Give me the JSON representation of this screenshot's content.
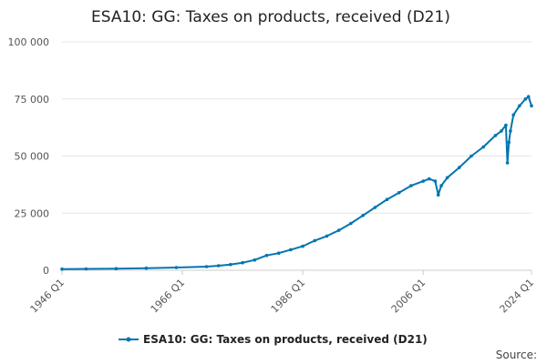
{
  "chart_data": {
    "type": "line",
    "title": "ESA10: GG: Taxes on products, received (D21)",
    "xlabel": "",
    "ylabel": "",
    "x_ticks": [
      "1946 Q1",
      "1966 Q1",
      "1986 Q1",
      "2006 Q1",
      "2024 Q1"
    ],
    "y_ticks": [
      "0",
      "25 000",
      "50 000",
      "75 000",
      "100 000"
    ],
    "ylim": [
      0,
      100000
    ],
    "xlim": [
      1946.0,
      2024.0
    ],
    "grid": true,
    "legend_position": "bottom",
    "source_label": "Source:",
    "colors": {
      "series": "#0075b0",
      "grid": "#e6e6e6",
      "axis": "#cccccc"
    },
    "series": [
      {
        "name": "ESA10: GG: Taxes on products, received (D21)",
        "x": [
          1946,
          1950,
          1955,
          1960,
          1965,
          1970,
          1972,
          1974,
          1976,
          1978,
          1980,
          1982,
          1984,
          1986,
          1988,
          1990,
          1992,
          1994,
          1996,
          1998,
          2000,
          2002,
          2004,
          2006,
          2007,
          2008,
          2008.5,
          2009,
          2010,
          2012,
          2014,
          2016,
          2018,
          2019,
          2019.75,
          2020.0,
          2020.25,
          2020.5,
          2021,
          2022,
          2023,
          2023.5,
          2024
        ],
        "values": [
          500,
          600,
          700,
          900,
          1200,
          1600,
          2000,
          2500,
          3300,
          4500,
          6500,
          7500,
          9000,
          10500,
          13000,
          15000,
          17500,
          20500,
          24000,
          27500,
          31000,
          34000,
          37000,
          39000,
          40000,
          39000,
          33000,
          37000,
          40500,
          45000,
          50000,
          54000,
          59000,
          61000,
          63500,
          47000,
          56000,
          61000,
          68000,
          72000,
          75000,
          76000,
          72000
        ]
      }
    ]
  }
}
